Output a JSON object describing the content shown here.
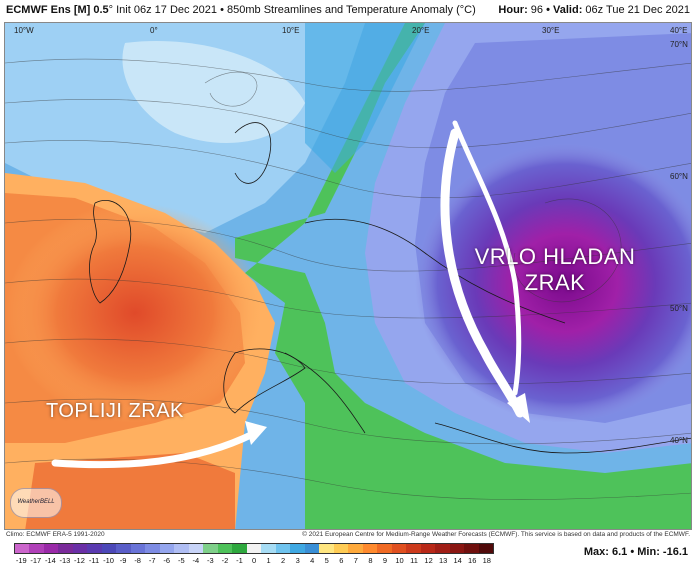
{
  "header": {
    "model": "ECMWF Ens [M] 0.5",
    "init": "° Init 06z 17 Dec 2021",
    "product": "• 850mb Streamlines and Temperature Anomaly (°C)",
    "hour_label": "Hour:",
    "hour_value": "96",
    "valid_label": "• Valid:",
    "valid_value": "06z Tue 21 Dec 2021"
  },
  "map": {
    "labels": {
      "cold": [
        "VRLO HLADAN",
        "ZRAK"
      ],
      "warm": "TOPLIJI ZRAK"
    },
    "longitudes": [
      "10°W",
      "0°",
      "10°E",
      "20°E",
      "30°E",
      "40°E"
    ],
    "latitudes": [
      "70°N",
      "60°N",
      "50°N",
      "40°N"
    ],
    "logo_text": "WeatherBELL"
  },
  "footer": {
    "climo": "Climo: ECMWF ERA-5 1991-2020",
    "copyright": "© 2021 European Centre for Medium-Range Weather Forecasts (ECMWF). This service is based on data and products of the ECMWF.",
    "max_label": "Max: 6.1 • Min: -16.1",
    "scale_ticks": [
      "-19",
      "-17",
      "-14",
      "-13",
      "-12",
      "-11",
      "-10",
      "-9",
      "-8",
      "-7",
      "-6",
      "-5",
      "-4",
      "-3",
      "-2",
      "-1",
      "0",
      "1",
      "2",
      "3",
      "4",
      "5",
      "6",
      "7",
      "8",
      "9",
      "10",
      "11",
      "12",
      "13",
      "14",
      "16",
      "18"
    ],
    "scale_colors": [
      "#cc66cc",
      "#b040b8",
      "#9a2aa8",
      "#7a2a9a",
      "#6a2fa6",
      "#5a3ab0",
      "#4c48b8",
      "#5a5ec8",
      "#6a74d8",
      "#7e8ce4",
      "#95a6ee",
      "#b0bef4",
      "#c8d4f8",
      "#7fd08a",
      "#4ec25a",
      "#2ea83e",
      "#f2f2f2",
      "#a6dcf4",
      "#6fc3ee",
      "#3fa8e2",
      "#3a8fd6",
      "#ffe680",
      "#ffcc55",
      "#ffaa3c",
      "#ff8a2e",
      "#f06a24",
      "#e05020",
      "#cc3a1c",
      "#b82818",
      "#a01e16",
      "#8a1612",
      "#70100e",
      "#500a0a"
    ]
  }
}
